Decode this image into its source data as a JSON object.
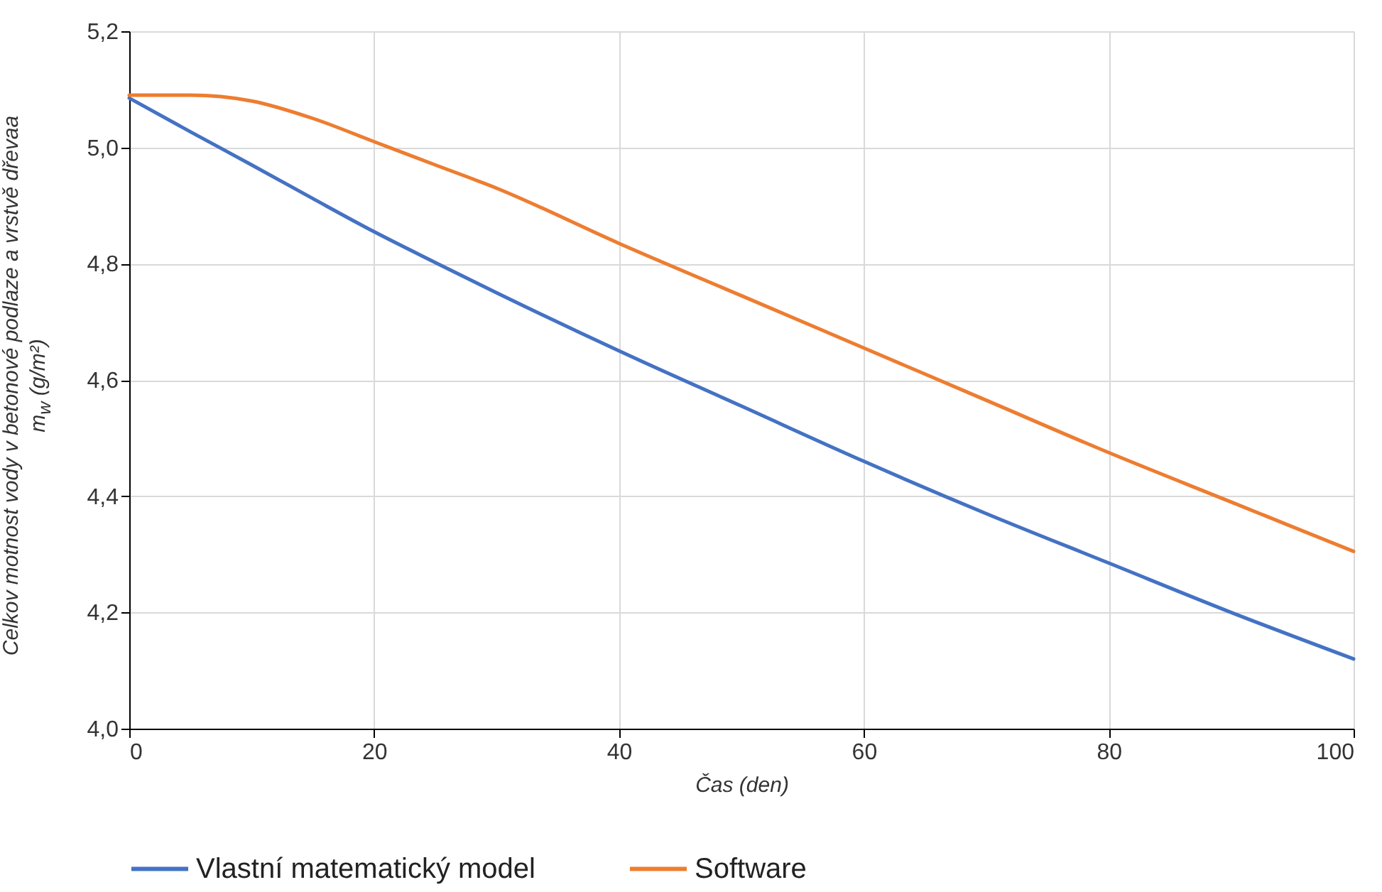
{
  "chart_data": {
    "type": "line",
    "xlabel": "Čas (den)",
    "ylabel": "Celkov motnost vody v betonové podlaze a vrstvě dřevaa\nm$_{w}$ (g/m²)",
    "x": [
      0,
      5,
      10,
      15,
      20,
      25,
      30,
      40,
      50,
      60,
      70,
      80,
      90,
      100
    ],
    "series": [
      {
        "name": "Vlastní matematický model",
        "color": "#4472c4",
        "values": [
          5.085,
          5.027,
          4.97,
          4.912,
          4.855,
          4.802,
          4.75,
          4.65,
          4.555,
          4.46,
          4.37,
          4.285,
          4.2,
          4.12
        ]
      },
      {
        "name": "Software",
        "color": "#ed7d31",
        "values": [
          5.09,
          5.09,
          5.08,
          5.05,
          5.01,
          4.97,
          4.93,
          4.835,
          4.745,
          4.655,
          4.565,
          4.475,
          4.39,
          4.305
        ]
      }
    ],
    "xlim": [
      0,
      100
    ],
    "xticks": [
      0,
      20,
      40,
      60,
      80,
      100
    ],
    "ylim": [
      4.0,
      5.2
    ],
    "yticks": [
      {
        "value": 4.0,
        "label": "4,0"
      },
      {
        "value": 4.2,
        "label": "4,2"
      },
      {
        "value": 4.4,
        "label": "4,4"
      },
      {
        "value": 4.6,
        "label": "4,6"
      },
      {
        "value": 4.8,
        "label": "4,8"
      },
      {
        "value": 5.0,
        "label": "5,0"
      },
      {
        "value": 5.2,
        "label": "5,2"
      }
    ],
    "grid": true,
    "legend": "bottom",
    "marker": "none",
    "line_style": "solid"
  }
}
